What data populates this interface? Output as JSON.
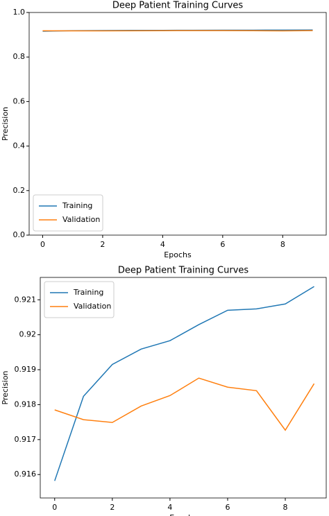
{
  "chart_data": [
    {
      "type": "line",
      "title": "Deep Patient Training Curves",
      "xlabel": "Epochs",
      "ylabel": "Precision",
      "x": [
        0,
        1,
        2,
        3,
        4,
        5,
        6,
        7,
        8,
        9
      ],
      "series": [
        {
          "name": "Training",
          "color": "#1f77b4",
          "values": [
            0.91582,
            0.91824,
            0.91915,
            0.91959,
            0.91983,
            0.92029,
            0.9207,
            0.92074,
            0.92088,
            0.92138
          ]
        },
        {
          "name": "Validation",
          "color": "#ff7f0e",
          "values": [
            0.91785,
            0.91757,
            0.91749,
            0.91796,
            0.91826,
            0.91876,
            0.9185,
            0.9184,
            0.91727,
            0.9186
          ]
        }
      ],
      "xlim": [
        -0.45,
        9.45
      ],
      "xticks": [
        0,
        2,
        4,
        6,
        8
      ],
      "ylim": [
        0,
        1
      ],
      "yticks": [
        {
          "value": 0,
          "label": "0.0"
        },
        0.2,
        0.4,
        0.6,
        0.8,
        {
          "value": 1,
          "label": "1.0"
        }
      ],
      "legend": "lower left"
    },
    {
      "type": "line",
      "title": "Deep Patient Training Curves",
      "xlabel": "Epochs",
      "ylabel": "Precision",
      "x": [
        0,
        1,
        2,
        3,
        4,
        5,
        6,
        7,
        8,
        9
      ],
      "series": [
        {
          "name": "Training",
          "color": "#1f77b4",
          "values": [
            0.91582,
            0.91824,
            0.91915,
            0.91959,
            0.91983,
            0.92029,
            0.9207,
            0.92074,
            0.92088,
            0.92138
          ]
        },
        {
          "name": "Validation",
          "color": "#ff7f0e",
          "values": [
            0.91785,
            0.91757,
            0.91749,
            0.91796,
            0.91826,
            0.91876,
            0.9185,
            0.9184,
            0.91727,
            0.9186
          ]
        }
      ],
      "xlim": [
        -0.5,
        9.42
      ],
      "xticks": [
        0,
        2,
        4,
        6,
        8
      ],
      "ylim": [
        0.91533,
        0.92164
      ],
      "yticks": [
        0.916,
        0.917,
        0.918,
        0.919,
        0.92,
        0.921
      ],
      "legend": "upper left"
    }
  ]
}
